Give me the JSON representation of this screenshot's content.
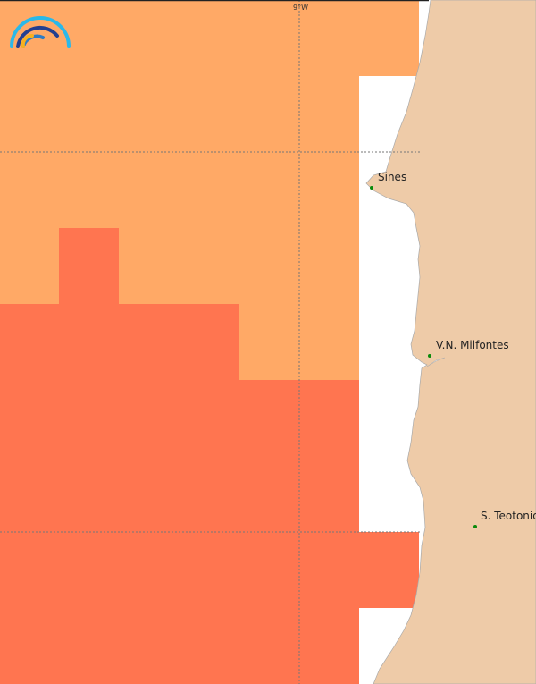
{
  "map": {
    "graticule": {
      "longitude_label": "9°W"
    },
    "places": [
      {
        "name": "Sines"
      },
      {
        "name": "V.N. Milfontes"
      },
      {
        "name": "S. Teotonio"
      }
    ],
    "colors": {
      "cell_low": "#FFA966",
      "cell_high": "#FF7550",
      "land": "#EECBA8",
      "sea": "#FFFFFF",
      "place_marker": "#0A8A0A"
    },
    "logo": {
      "icon": "rainbow-arcs-logo"
    }
  }
}
